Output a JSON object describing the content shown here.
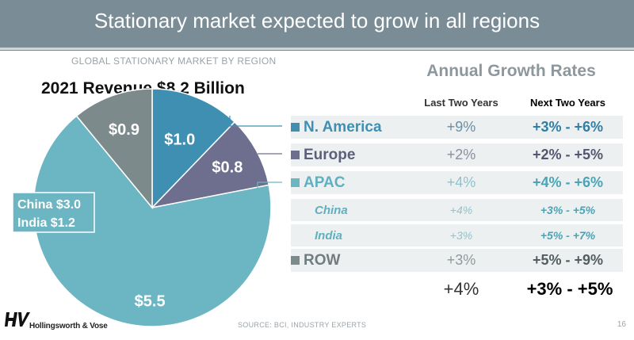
{
  "header": {
    "title": "Stationary market expected to grow in all regions"
  },
  "subtitle": "GLOBAL STATIONARY MARKET BY REGION",
  "colors": {
    "n_america": "#3f8fb3",
    "europe": "#6e6f8f",
    "apac": "#6cb5c2",
    "row": "#7c8a8c"
  },
  "chart_data": {
    "type": "pie",
    "title": "2021 Revenue $8.2 Billion",
    "unit": "$ Billion",
    "slices": [
      {
        "name": "N. America",
        "value": 1.0,
        "label": "$1.0"
      },
      {
        "name": "Europe",
        "value": 0.8,
        "label": "$0.8"
      },
      {
        "name": "APAC",
        "value": 5.5,
        "label": "$5.5"
      },
      {
        "name": "ROW",
        "value": 0.9,
        "label": "$0.9"
      }
    ],
    "apac_callout": [
      {
        "name": "China",
        "value": 3.0,
        "label": "China $3.0"
      },
      {
        "name": "India",
        "value": 1.2,
        "label": "India  $1.2"
      }
    ]
  },
  "growth": {
    "title": "Annual Growth Rates",
    "col_last": "Last Two Years",
    "col_next": "Next Two Years",
    "rows": [
      {
        "region": "N. America",
        "last": "+9%",
        "next": "+3% - +6%"
      },
      {
        "region": "Europe",
        "last": "+2%",
        "next": "+2% - +5%"
      },
      {
        "region": "APAC",
        "last": "+4%",
        "next": "+4% - +6%"
      },
      {
        "region": "China",
        "last": "+4%",
        "next": "+3% - +5%"
      },
      {
        "region": "India",
        "last": "+3%",
        "next": "+5% - +7%"
      },
      {
        "region": "ROW",
        "last": "+3%",
        "next": "+5% - +9%"
      }
    ],
    "total_last": "+4%",
    "total_next": "+3% - +5%"
  },
  "footer": {
    "logo_mark": "HV",
    "company": "Hollingsworth & Vose",
    "source": "SOURCE: BCI, INDUSTRY EXPERTS",
    "page": "16"
  }
}
